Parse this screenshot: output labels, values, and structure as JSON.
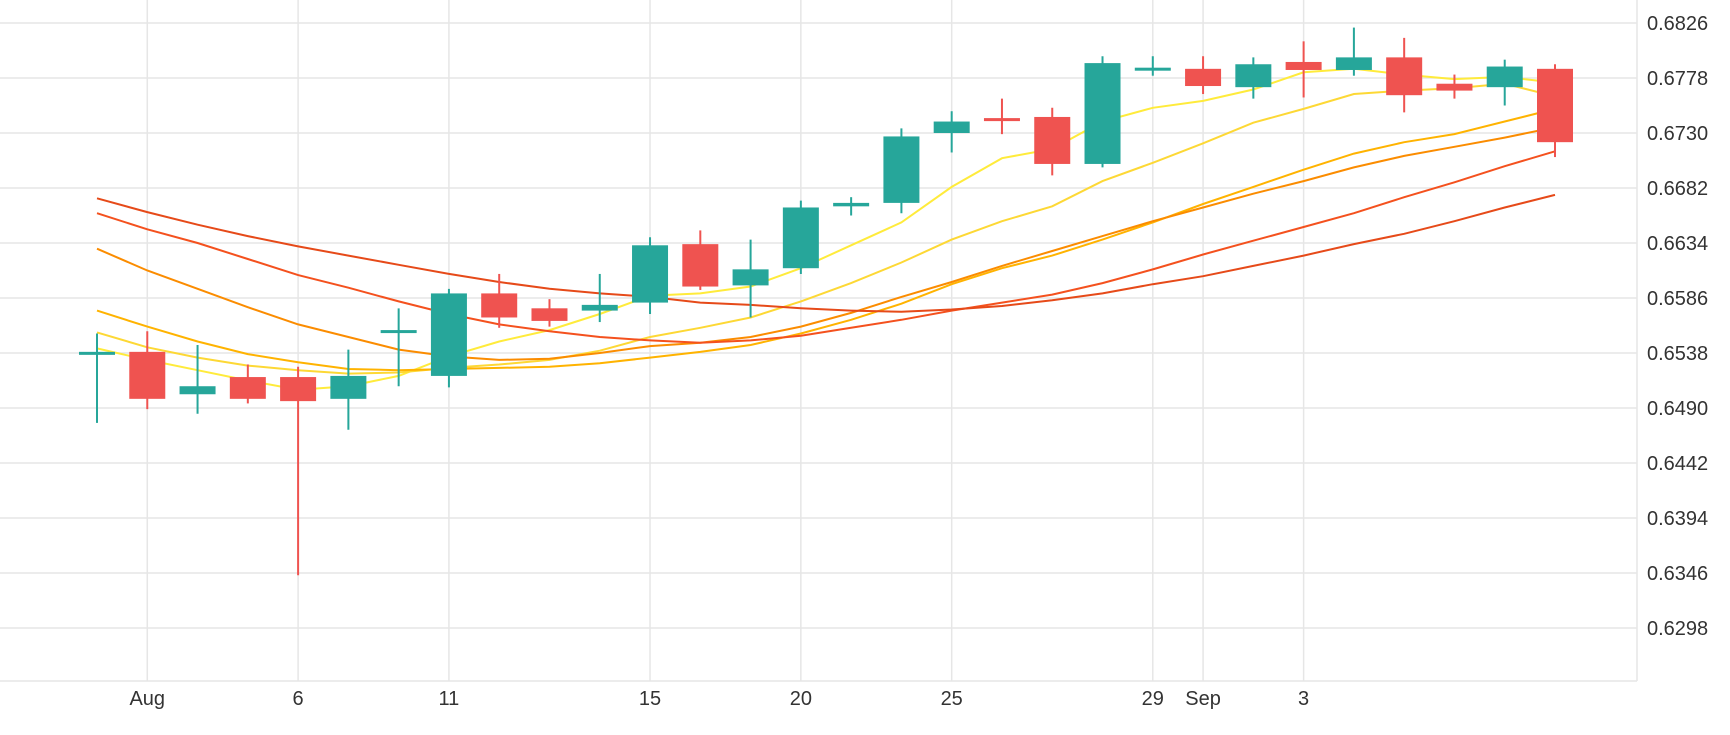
{
  "chart_data": {
    "type": "candlestick",
    "title": "",
    "xlabel": "",
    "ylabel": "",
    "ylim": [
      0.625,
      0.6874
    ],
    "grid": true,
    "y_ticks": [
      0.6298,
      0.6346,
      0.6394,
      0.6442,
      0.649,
      0.6538,
      0.6586,
      0.6634,
      0.6682,
      0.673,
      0.6778,
      0.6826
    ],
    "y_tick_labels": [
      "0.6298",
      "0.6346",
      "0.6394",
      "0.6442",
      "0.6490",
      "0.6538",
      "0.6586",
      "0.6634",
      "0.6682",
      "0.6730",
      "0.6778",
      "0.6826"
    ],
    "x_ticks": [
      {
        "date": "2025-08-01",
        "label": "Aug"
      },
      {
        "date": "2025-08-06",
        "label": "6"
      },
      {
        "date": "2025-08-11",
        "label": "11"
      },
      {
        "date": "2025-08-15",
        "label": "15"
      },
      {
        "date": "2025-08-20",
        "label": "20"
      },
      {
        "date": "2025-08-25",
        "label": "25"
      },
      {
        "date": "2025-08-29",
        "label": "29"
      },
      {
        "date": "2025-09-01",
        "label": "Sep"
      },
      {
        "date": "2025-09-03",
        "label": "3"
      }
    ],
    "colors": {
      "up": "#26a69a",
      "down": "#ef5350",
      "grid": "#e6e6e6",
      "text": "#333333"
    },
    "candles": [
      {
        "date": "2025-07-31",
        "open": 0.6538,
        "high": 0.6555,
        "low": 0.6477,
        "close": 0.6539
      },
      {
        "date": "2025-08-01",
        "open": 0.6539,
        "high": 0.6557,
        "low": 0.6489,
        "close": 0.6498
      },
      {
        "date": "2025-08-04",
        "open": 0.6502,
        "high": 0.6545,
        "low": 0.6485,
        "close": 0.6509
      },
      {
        "date": "2025-08-05",
        "open": 0.6517,
        "high": 0.6528,
        "low": 0.6494,
        "close": 0.6498
      },
      {
        "date": "2025-08-06",
        "open": 0.6517,
        "high": 0.6526,
        "low": 0.6344,
        "close": 0.6496
      },
      {
        "date": "2025-08-07",
        "open": 0.6498,
        "high": 0.6541,
        "low": 0.6471,
        "close": 0.6518
      },
      {
        "date": "2025-08-08",
        "open": 0.6558,
        "high": 0.6577,
        "low": 0.6509,
        "close": 0.6558
      },
      {
        "date": "2025-08-11",
        "open": 0.6518,
        "high": 0.6594,
        "low": 0.6508,
        "close": 0.659
      },
      {
        "date": "2025-08-12",
        "open": 0.659,
        "high": 0.6607,
        "low": 0.656,
        "close": 0.6569
      },
      {
        "date": "2025-08-13",
        "open": 0.6577,
        "high": 0.6585,
        "low": 0.6561,
        "close": 0.6566
      },
      {
        "date": "2025-08-14",
        "open": 0.6575,
        "high": 0.6607,
        "low": 0.6565,
        "close": 0.658
      },
      {
        "date": "2025-08-15",
        "open": 0.6582,
        "high": 0.6639,
        "low": 0.6572,
        "close": 0.6632
      },
      {
        "date": "2025-08-18",
        "open": 0.6633,
        "high": 0.6645,
        "low": 0.6593,
        "close": 0.6596
      },
      {
        "date": "2025-08-19",
        "open": 0.6597,
        "high": 0.6637,
        "low": 0.6569,
        "close": 0.6611
      },
      {
        "date": "2025-08-20",
        "open": 0.6612,
        "high": 0.6671,
        "low": 0.6607,
        "close": 0.6665
      },
      {
        "date": "2025-08-21",
        "open": 0.6666,
        "high": 0.6674,
        "low": 0.6658,
        "close": 0.6669
      },
      {
        "date": "2025-08-22",
        "open": 0.6669,
        "high": 0.6734,
        "low": 0.666,
        "close": 0.6727
      },
      {
        "date": "2025-08-25",
        "open": 0.673,
        "high": 0.6749,
        "low": 0.6713,
        "close": 0.674
      },
      {
        "date": "2025-08-26",
        "open": 0.6743,
        "high": 0.676,
        "low": 0.6729,
        "close": 0.6741
      },
      {
        "date": "2025-08-27",
        "open": 0.6744,
        "high": 0.6752,
        "low": 0.6693,
        "close": 0.6703
      },
      {
        "date": "2025-08-28",
        "open": 0.6703,
        "high": 0.6797,
        "low": 0.67,
        "close": 0.6791
      },
      {
        "date": "2025-08-29",
        "open": 0.6785,
        "high": 0.6797,
        "low": 0.678,
        "close": 0.6787
      },
      {
        "date": "2025-09-01",
        "open": 0.6786,
        "high": 0.6797,
        "low": 0.6764,
        "close": 0.6771
      },
      {
        "date": "2025-09-02",
        "open": 0.677,
        "high": 0.6796,
        "low": 0.676,
        "close": 0.679
      },
      {
        "date": "2025-09-03",
        "open": 0.6792,
        "high": 0.681,
        "low": 0.6761,
        "close": 0.6785
      },
      {
        "date": "2025-09-04",
        "open": 0.6785,
        "high": 0.6822,
        "low": 0.678,
        "close": 0.6796
      },
      {
        "date": "2025-09-05",
        "open": 0.6796,
        "high": 0.6813,
        "low": 0.6748,
        "close": 0.6763
      },
      {
        "date": "2025-09-08",
        "open": 0.6773,
        "high": 0.6781,
        "low": 0.676,
        "close": 0.6767
      },
      {
        "date": "2025-09-09",
        "open": 0.677,
        "high": 0.6794,
        "low": 0.6754,
        "close": 0.6788
      },
      {
        "date": "2025-09-10",
        "open": 0.6786,
        "high": 0.679,
        "low": 0.6709,
        "close": 0.6722
      }
    ],
    "series": [
      {
        "color": "#ffeb3b",
        "values": [
          0.6542,
          0.6532,
          0.6523,
          0.6514,
          0.6506,
          0.6509,
          0.6518,
          0.6535,
          0.6548,
          0.6558,
          0.6572,
          0.6588,
          0.659,
          0.6596,
          0.6612,
          0.6632,
          0.6652,
          0.6683,
          0.6708,
          0.6716,
          0.674,
          0.6752,
          0.6758,
          0.6768,
          0.6783,
          0.6786,
          0.6781,
          0.6777,
          0.6779,
          0.6774
        ]
      },
      {
        "color": "#fdd835",
        "values": [
          0.6556,
          0.6543,
          0.6534,
          0.6527,
          0.6523,
          0.652,
          0.6521,
          0.6525,
          0.6528,
          0.6532,
          0.654,
          0.6552,
          0.656,
          0.6569,
          0.6583,
          0.6599,
          0.6617,
          0.6637,
          0.6653,
          0.6666,
          0.6688,
          0.6704,
          0.6721,
          0.6739,
          0.6751,
          0.6764,
          0.6767,
          0.6769,
          0.6773,
          0.6762
        ]
      },
      {
        "color": "#ffb300",
        "values": [
          0.6575,
          0.6561,
          0.6548,
          0.6537,
          0.653,
          0.6524,
          0.6523,
          0.6524,
          0.6525,
          0.6526,
          0.6529,
          0.6534,
          0.6539,
          0.6545,
          0.6555,
          0.6567,
          0.6581,
          0.6598,
          0.6612,
          0.6623,
          0.6637,
          0.6652,
          0.6668,
          0.6683,
          0.6698,
          0.6712,
          0.6722,
          0.6729,
          0.674,
          0.6751
        ]
      },
      {
        "color": "#fb8c00",
        "values": [
          0.6629,
          0.661,
          0.6594,
          0.6578,
          0.6563,
          0.6552,
          0.6541,
          0.6535,
          0.6532,
          0.6533,
          0.6538,
          0.6544,
          0.6547,
          0.6552,
          0.6561,
          0.6573,
          0.6587,
          0.66,
          0.6614,
          0.6627,
          0.664,
          0.6653,
          0.6665,
          0.6677,
          0.6688,
          0.67,
          0.671,
          0.6718,
          0.6726,
          0.6735
        ]
      },
      {
        "color": "#f4511e",
        "values": [
          0.666,
          0.6646,
          0.6634,
          0.662,
          0.6606,
          0.6595,
          0.6583,
          0.6572,
          0.6563,
          0.6557,
          0.6552,
          0.6549,
          0.6547,
          0.6549,
          0.6553,
          0.656,
          0.6567,
          0.6575,
          0.6582,
          0.6589,
          0.6599,
          0.6611,
          0.6624,
          0.6636,
          0.6648,
          0.666,
          0.6674,
          0.6687,
          0.6701,
          0.6714
        ]
      },
      {
        "color": "#e64a19",
        "values": [
          0.6673,
          0.6661,
          0.665,
          0.664,
          0.6631,
          0.6623,
          0.6615,
          0.6607,
          0.66,
          0.6594,
          0.659,
          0.6587,
          0.6582,
          0.658,
          0.6577,
          0.6575,
          0.6574,
          0.6576,
          0.6579,
          0.6584,
          0.659,
          0.6598,
          0.6605,
          0.6614,
          0.6623,
          0.6633,
          0.6642,
          0.6653,
          0.6665,
          0.6676
        ]
      }
    ]
  }
}
